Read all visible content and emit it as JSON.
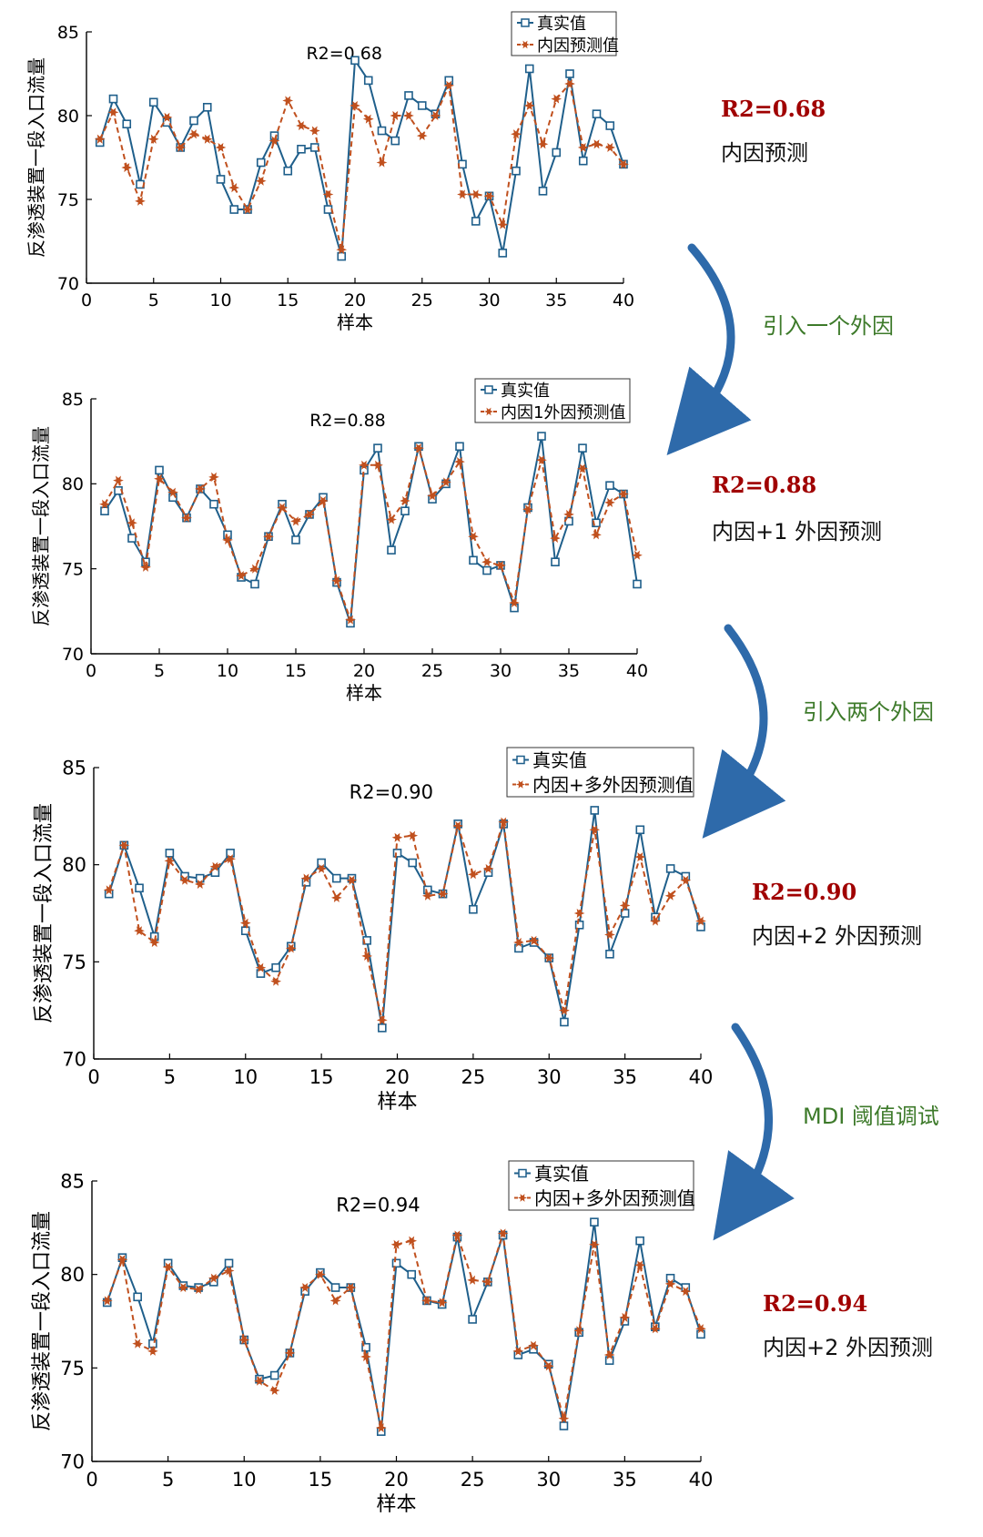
{
  "colors": {
    "actual": "#1f5f8b",
    "predicted": "#c0501e",
    "r2_note": "#a00000",
    "step": "#3d7a2a",
    "arrow": "#2e6aaa"
  },
  "chart_data": [
    {
      "type": "line",
      "title": "R2=0.68",
      "xlabel": "样本",
      "ylabel": "反渗透装置一段入口流量",
      "xlim": [
        0,
        40
      ],
      "ylim": [
        70,
        85
      ],
      "xticks": [
        0,
        5,
        10,
        15,
        20,
        25,
        30,
        35,
        40
      ],
      "yticks": [
        70,
        75,
        80,
        85
      ],
      "legend_position": "top-right",
      "x": [
        1,
        2,
        3,
        4,
        5,
        6,
        7,
        8,
        9,
        10,
        11,
        12,
        13,
        14,
        15,
        16,
        17,
        18,
        19,
        20,
        21,
        22,
        23,
        24,
        25,
        26,
        27,
        28,
        29,
        30,
        31,
        32,
        33,
        34,
        35,
        36,
        37,
        38,
        39,
        40
      ],
      "series": [
        {
          "name": "真实值",
          "style": "solid-square",
          "values": [
            78.4,
            81,
            79.5,
            75.9,
            80.8,
            79.6,
            78.1,
            79.7,
            80.5,
            76.2,
            74.4,
            74.4,
            77.2,
            78.8,
            76.7,
            78,
            78.1,
            74.4,
            71.6,
            83.3,
            82.1,
            79.1,
            78.5,
            81.2,
            80.6,
            80.1,
            82.1,
            77.1,
            73.7,
            75.2,
            71.8,
            76.7,
            82.8,
            75.5,
            77.8,
            82.5,
            77.3,
            80.1,
            79.4,
            77.1
          ]
        },
        {
          "name": "内因预测值",
          "style": "dashed-star",
          "values": [
            78.6,
            80.2,
            76.9,
            74.9,
            78.6,
            79.9,
            78.1,
            78.9,
            78.6,
            78.1,
            75.7,
            74.4,
            76.1,
            78.5,
            80.9,
            79.4,
            79.1,
            75.3,
            72,
            80.6,
            79.8,
            77.2,
            80,
            80,
            78.8,
            80,
            81.8,
            75.3,
            75.3,
            75.2,
            73.5,
            78.9,
            80.6,
            78.3,
            81,
            81.9,
            78.1,
            78.3,
            78.1,
            77.1
          ]
        }
      ]
    },
    {
      "type": "line",
      "title": "R2=0.88",
      "xlabel": "样本",
      "ylabel": "反渗透装置一段入口流量",
      "xlim": [
        0,
        40
      ],
      "ylim": [
        70,
        85
      ],
      "xticks": [
        0,
        5,
        10,
        15,
        20,
        25,
        30,
        35,
        40
      ],
      "yticks": [
        70,
        75,
        80,
        85
      ],
      "legend_position": "top-right",
      "x": [
        1,
        2,
        3,
        4,
        5,
        6,
        7,
        8,
        9,
        10,
        11,
        12,
        13,
        14,
        15,
        16,
        17,
        18,
        19,
        20,
        21,
        22,
        23,
        24,
        25,
        26,
        27,
        28,
        29,
        30,
        31,
        32,
        33,
        34,
        35,
        36,
        37,
        38,
        39,
        40
      ],
      "series": [
        {
          "name": "真实值",
          "style": "solid-square",
          "values": [
            78.4,
            79.6,
            76.8,
            75.4,
            80.8,
            79.2,
            78,
            79.7,
            78.8,
            77,
            74.5,
            74.1,
            76.9,
            78.8,
            76.7,
            78.2,
            79.2,
            74.2,
            71.8,
            80.8,
            82.1,
            76.1,
            78.4,
            82.2,
            79.1,
            80,
            82.2,
            75.5,
            74.9,
            75.2,
            72.7,
            78.6,
            82.8,
            75.4,
            77.8,
            82.1,
            77.7,
            79.9,
            79.4,
            74.1
          ]
        },
        {
          "name": "内因1外因预测值",
          "style": "dashed-star",
          "values": [
            78.8,
            80.2,
            77.7,
            75.1,
            80.3,
            79.5,
            78,
            79.7,
            80.4,
            76.7,
            74.6,
            75,
            76.9,
            78.6,
            77.8,
            78.2,
            79,
            74.3,
            72,
            81.1,
            81.1,
            77.9,
            79,
            82.1,
            79.3,
            80.1,
            81.3,
            76.9,
            75.4,
            75.2,
            73,
            78.5,
            81.4,
            76.8,
            78.2,
            80.9,
            77,
            78.9,
            79.4,
            75.8
          ]
        }
      ]
    },
    {
      "type": "line",
      "title": "R2=0.90",
      "xlabel": "样本",
      "ylabel": "反渗透装置一段入口流量",
      "xlim": [
        0,
        40
      ],
      "ylim": [
        70,
        85
      ],
      "xticks": [
        0,
        5,
        10,
        15,
        20,
        25,
        30,
        35,
        40
      ],
      "yticks": [
        70,
        75,
        80,
        85
      ],
      "legend_position": "top-right",
      "x": [
        1,
        2,
        3,
        4,
        5,
        6,
        7,
        8,
        9,
        10,
        11,
        12,
        13,
        14,
        15,
        16,
        17,
        18,
        19,
        20,
        21,
        22,
        23,
        24,
        25,
        26,
        27,
        28,
        29,
        30,
        31,
        32,
        33,
        34,
        35,
        36,
        37,
        38,
        39,
        40
      ],
      "series": [
        {
          "name": "真实值",
          "style": "solid-square",
          "values": [
            78.5,
            81,
            78.8,
            76.3,
            80.6,
            79.4,
            79.3,
            79.6,
            80.6,
            76.6,
            74.4,
            74.7,
            75.8,
            79.1,
            80.1,
            79.3,
            79.3,
            76.1,
            71.6,
            80.6,
            80.1,
            78.7,
            78.5,
            82.1,
            77.7,
            79.6,
            82.1,
            75.7,
            76,
            75.2,
            71.9,
            76.9,
            82.8,
            75.4,
            77.5,
            81.8,
            77.3,
            79.8,
            79.4,
            76.8
          ]
        },
        {
          "name": "内因+多外因预测值",
          "style": "dashed-star",
          "values": [
            78.7,
            81,
            76.6,
            76,
            80.2,
            79.2,
            79,
            79.9,
            80.3,
            77,
            74.7,
            74,
            75.7,
            79.3,
            79.8,
            78.3,
            79.2,
            75.3,
            72,
            81.4,
            81.5,
            78.4,
            78.5,
            82,
            79.5,
            79.8,
            82.2,
            76,
            76.1,
            75.2,
            72.5,
            77.5,
            81.8,
            76.4,
            77.9,
            80.4,
            77.1,
            78.4,
            79.2,
            77.1
          ]
        }
      ]
    },
    {
      "type": "line",
      "title": "R2=0.94",
      "xlabel": "样本",
      "ylabel": "反渗透装置一段入口流量",
      "xlim": [
        0,
        40
      ],
      "ylim": [
        70,
        85
      ],
      "xticks": [
        0,
        5,
        10,
        15,
        20,
        25,
        30,
        35,
        40
      ],
      "yticks": [
        70,
        75,
        80,
        85
      ],
      "legend_position": "top-right",
      "x": [
        1,
        2,
        3,
        4,
        5,
        6,
        7,
        8,
        9,
        10,
        11,
        12,
        13,
        14,
        15,
        16,
        17,
        18,
        19,
        20,
        21,
        22,
        23,
        24,
        25,
        26,
        27,
        28,
        29,
        30,
        31,
        32,
        33,
        34,
        35,
        36,
        37,
        38,
        39,
        40
      ],
      "series": [
        {
          "name": "真实值",
          "style": "solid-square",
          "values": [
            78.5,
            80.9,
            78.8,
            76.3,
            80.6,
            79.4,
            79.3,
            79.6,
            80.6,
            76.5,
            74.4,
            74.6,
            75.8,
            79.1,
            80.1,
            79.3,
            79.3,
            76.1,
            71.6,
            80.6,
            80,
            78.6,
            78.4,
            82,
            77.6,
            79.6,
            82.1,
            75.7,
            76,
            75.2,
            71.9,
            76.9,
            82.8,
            75.4,
            77.5,
            81.8,
            77.2,
            79.8,
            79.3,
            76.8
          ]
        },
        {
          "name": "内因+多外因预测值",
          "style": "dashed-star",
          "values": [
            78.6,
            80.8,
            76.3,
            75.9,
            80.4,
            79.3,
            79.2,
            79.8,
            80.2,
            76.5,
            74.3,
            73.8,
            75.8,
            79.3,
            80,
            78.6,
            79.3,
            75.6,
            71.8,
            81.6,
            81.8,
            78.6,
            78.5,
            82.1,
            79.7,
            79.6,
            82.2,
            75.9,
            76.2,
            75.1,
            72.3,
            77,
            81.6,
            75.7,
            77.7,
            80.5,
            77.1,
            79.5,
            79.1,
            77.1
          ]
        }
      ]
    }
  ],
  "side_notes": [
    {
      "r2": "R2=0.68",
      "label": "内因预测"
    },
    {
      "r2": "R2=0.88",
      "label": "内因+1 外因预测"
    },
    {
      "r2": "R2=0.90",
      "label": "内因+2 外因预测"
    },
    {
      "r2": "R2=0.94",
      "label": "内因+2 外因预测"
    }
  ],
  "steps": [
    {
      "label": "引入一个外因"
    },
    {
      "label": "引入两个外因"
    },
    {
      "label": "MDI 阈值调试"
    }
  ]
}
